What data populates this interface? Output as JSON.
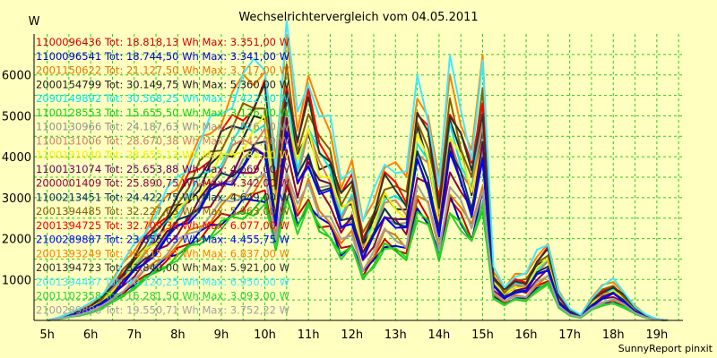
{
  "chart_data": {
    "type": "line",
    "title": "Wechselrichtervergleich vom 04.05.2011",
    "ylabel": "W",
    "footer": "SunnyReport pinxit",
    "grid": true,
    "ylim": [
      0,
      7000
    ],
    "xlim": [
      4.7,
      19.6
    ],
    "y_ticks": [
      1000,
      2000,
      3000,
      4000,
      5000,
      6000
    ],
    "x_ticks": [
      "5h",
      "6h",
      "7h",
      "8h",
      "9h",
      "10h",
      "11h",
      "12h",
      "13h",
      "14h",
      "15h",
      "16h",
      "17h",
      "18h",
      "19h"
    ],
    "legend_placement": "top-left",
    "x": [
      5.0,
      5.25,
      5.5,
      5.75,
      6.0,
      6.25,
      6.5,
      6.75,
      7.0,
      7.25,
      7.5,
      7.75,
      8.0,
      8.25,
      8.5,
      8.75,
      9.0,
      9.25,
      9.5,
      9.75,
      10.0,
      10.25,
      10.5,
      10.75,
      11.0,
      11.25,
      11.5,
      11.75,
      12.0,
      12.25,
      12.5,
      12.75,
      13.0,
      13.25,
      13.5,
      13.75,
      14.0,
      14.25,
      14.5,
      14.75,
      15.0,
      15.25,
      15.5,
      15.75,
      16.0,
      16.25,
      16.5,
      16.75,
      17.0,
      17.25,
      17.5,
      17.75,
      18.0,
      18.25,
      18.5,
      18.75,
      19.0,
      19.25
    ],
    "base_profile": [
      0.0,
      0.01,
      0.025,
      0.04,
      0.06,
      0.09,
      0.14,
      0.2,
      0.26,
      0.32,
      0.38,
      0.44,
      0.5,
      0.56,
      0.62,
      0.68,
      0.74,
      0.79,
      0.84,
      0.88,
      0.92,
      0.55,
      1.0,
      0.72,
      0.88,
      0.72,
      0.68,
      0.5,
      0.56,
      0.34,
      0.44,
      0.57,
      0.54,
      0.5,
      0.84,
      0.74,
      0.48,
      0.88,
      0.74,
      0.6,
      0.9,
      0.18,
      0.12,
      0.16,
      0.16,
      0.24,
      0.28,
      0.1,
      0.04,
      0.02,
      0.08,
      0.12,
      0.14,
      0.1,
      0.05,
      0.02,
      0.005,
      0.0
    ],
    "series": [
      {
        "name": "1100096436 Tot: 18.818,13 Wh Max: 3.351,00 W",
        "color": "#cc0000",
        "max": 3351
      },
      {
        "name": "1100096541 Tot: 18.744,50 Wh Max: 3.341,00 W",
        "color": "#0000cc",
        "max": 3341
      },
      {
        "name": "2001150622 Tot: 21.127,50 Wh Max: 3.717,00 W",
        "color": "#e07800",
        "max": 3717
      },
      {
        "name": "2000154799 Tot: 30.149,75 Wh Max: 5.360,00 W",
        "color": "#202020",
        "max": 5360
      },
      {
        "name": "2090149892 Tot: 30.568,25 Wh Max: 5.422,00 W",
        "color": "#00e8f0",
        "max": 5422
      },
      {
        "name": "1100128553 Tot: 15.655,50 Wh Max: 3.126,00 W",
        "color": "#10d010",
        "max": 3126
      },
      {
        "name": "1100130966 Tot: 24.187,63 Wh Max: 4.576,00 W",
        "color": "#909090",
        "max": 4576
      },
      {
        "name": "1100131006 Tot: 28.670,38 Wh Max: 5.142,00 W",
        "color": "#d08060",
        "max": 5142
      },
      {
        "name": "1100131040 Tot: 28.655,13 Wh Max: 5.188,00 W",
        "color": "#f0f000",
        "max": 5188
      },
      {
        "name": "1100131074 Tot: 25.653,88 Wh Max: 4.669,00 W",
        "color": "#600060",
        "max": 4669
      },
      {
        "name": "2000001409 Tot: 25.890,75 Wh Max: 4.342,00 W",
        "color": "#900040",
        "max": 4342
      },
      {
        "name": "1100213451 Tot: 24.422,75 Wh Max: 4.649,00 W",
        "color": "#003060",
        "max": 4649
      },
      {
        "name": "2001394485 Tot: 32.227,63 Wh Max: 5.963,00 W",
        "color": "#806000",
        "max": 5963
      },
      {
        "name": "2001394725 Tot: 32.709,38 Wh Max: 6.077,00 W",
        "color": "#ff0000",
        "max": 6077
      },
      {
        "name": "2100289887 Tot: 23.855,63 Wh Max: 4.455,75 W",
        "color": "#0000ff",
        "max": 4456
      },
      {
        "name": "2001393249 Tot: 36.315,25 Wh Max: 6.837,00 W",
        "color": "#ff8000",
        "max": 6837
      },
      {
        "name": "2001394723 Tot: 31.840,00 Wh Max: 5.921,00 W",
        "color": "#303030",
        "max": 5921
      },
      {
        "name": "2001394487 Tot: 40.120,25 Wh Max: 6.950,00 W",
        "color": "#40e8ff",
        "max": 6950
      },
      {
        "name": "2001102358 Tot: 16.281,50 Wh Max: 3.093,00 W",
        "color": "#30d030",
        "max": 3093
      },
      {
        "name": "2100289888 Tot: 19.550,71 Wh Max: 3.752,22 W",
        "color": "#a0a0a0",
        "max": 3752
      }
    ]
  }
}
